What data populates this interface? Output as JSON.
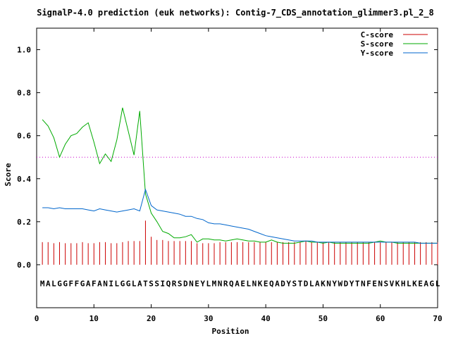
{
  "chart_data": {
    "type": "line",
    "title": "SignalP-4.0 prediction (euk networks): Contig-7_CDS_annotation_glimmer3.pl_2_8",
    "xlabel": "Position",
    "ylabel": "Score",
    "xlim": [
      0,
      70
    ],
    "ylim": [
      -0.2,
      1.1
    ],
    "xticks": [
      0,
      10,
      20,
      30,
      40,
      50,
      60,
      70
    ],
    "yticks": [
      0.0,
      0.2,
      0.4,
      0.6,
      0.8,
      1.0
    ],
    "ytick_labels": [
      "0.0",
      "0.2",
      "0.4",
      "0.6",
      "0.8",
      "1.0"
    ],
    "grid": false,
    "legend_position": "top-right",
    "threshold": {
      "value": 0.5,
      "style": "dotted",
      "color": "#cc00cc"
    },
    "sequence": "MALGGFFGAFANILGGLATSSIQRSDNEYLMNRQAELNKEQADYSTDLAKNYWDYTNFENSVKHLKEAGL",
    "series": [
      {
        "name": "C-score",
        "style": "impulse",
        "color": "#cc0000",
        "x": [
          1,
          2,
          3,
          4,
          5,
          6,
          7,
          8,
          9,
          10,
          11,
          12,
          13,
          14,
          15,
          16,
          17,
          18,
          19,
          20,
          21,
          22,
          23,
          24,
          25,
          26,
          27,
          28,
          29,
          30,
          31,
          32,
          33,
          34,
          35,
          36,
          37,
          38,
          39,
          40,
          41,
          42,
          43,
          44,
          45,
          46,
          47,
          48,
          49,
          50,
          51,
          52,
          53,
          54,
          55,
          56,
          57,
          58,
          59,
          60,
          61,
          62,
          63,
          64,
          65,
          66,
          67,
          68,
          69,
          70
        ],
        "values": [
          0.105,
          0.105,
          0.1,
          0.105,
          0.1,
          0.1,
          0.1,
          0.105,
          0.1,
          0.1,
          0.105,
          0.105,
          0.1,
          0.1,
          0.105,
          0.11,
          0.11,
          0.11,
          0.205,
          0.13,
          0.115,
          0.115,
          0.11,
          0.11,
          0.11,
          0.11,
          0.11,
          0.1,
          0.1,
          0.1,
          0.1,
          0.105,
          0.105,
          0.105,
          0.105,
          0.105,
          0.105,
          0.105,
          0.105,
          0.105,
          0.105,
          0.105,
          0.105,
          0.105,
          0.105,
          0.105,
          0.11,
          0.105,
          0.105,
          0.105,
          0.105,
          0.105,
          0.105,
          0.105,
          0.105,
          0.105,
          0.105,
          0.105,
          0.105,
          0.105,
          0.105,
          0.105,
          0.105,
          0.105,
          0.105,
          0.105,
          0.105,
          0.105,
          0.105,
          0.105
        ]
      },
      {
        "name": "S-score",
        "style": "line",
        "color": "#00aa00",
        "x": [
          1,
          2,
          3,
          4,
          5,
          6,
          7,
          8,
          9,
          10,
          11,
          12,
          13,
          14,
          15,
          16,
          17,
          18,
          19,
          20,
          21,
          22,
          23,
          24,
          25,
          26,
          27,
          28,
          29,
          30,
          31,
          32,
          33,
          34,
          35,
          36,
          37,
          38,
          39,
          40,
          41,
          42,
          43,
          44,
          45,
          46,
          47,
          48,
          49,
          50,
          51,
          52,
          53,
          54,
          55,
          56,
          57,
          58,
          59,
          60,
          61,
          62,
          63,
          64,
          65,
          66,
          67,
          68,
          69,
          70
        ],
        "values": [
          0.675,
          0.645,
          0.59,
          0.5,
          0.56,
          0.6,
          0.61,
          0.64,
          0.66,
          0.57,
          0.47,
          0.515,
          0.48,
          0.58,
          0.73,
          0.62,
          0.51,
          0.715,
          0.33,
          0.24,
          0.2,
          0.155,
          0.145,
          0.125,
          0.125,
          0.13,
          0.14,
          0.105,
          0.12,
          0.12,
          0.115,
          0.115,
          0.11,
          0.115,
          0.12,
          0.115,
          0.11,
          0.11,
          0.105,
          0.105,
          0.115,
          0.105,
          0.1,
          0.1,
          0.1,
          0.105,
          0.11,
          0.105,
          0.105,
          0.1,
          0.105,
          0.1,
          0.1,
          0.1,
          0.1,
          0.1,
          0.1,
          0.1,
          0.105,
          0.11,
          0.105,
          0.105,
          0.1,
          0.1,
          0.1,
          0.1,
          0.1,
          0.1,
          0.1,
          0.1
        ]
      },
      {
        "name": "Y-score",
        "style": "line",
        "color": "#0066cc",
        "x": [
          1,
          2,
          3,
          4,
          5,
          6,
          7,
          8,
          9,
          10,
          11,
          12,
          13,
          14,
          15,
          16,
          17,
          18,
          19,
          20,
          21,
          22,
          23,
          24,
          25,
          26,
          27,
          28,
          29,
          30,
          31,
          32,
          33,
          34,
          35,
          36,
          37,
          38,
          39,
          40,
          41,
          42,
          43,
          44,
          45,
          46,
          47,
          48,
          49,
          50,
          51,
          52,
          53,
          54,
          55,
          56,
          57,
          58,
          59,
          60,
          61,
          62,
          63,
          64,
          65,
          66,
          67,
          68,
          69,
          70
        ],
        "values": [
          0.265,
          0.265,
          0.26,
          0.265,
          0.26,
          0.26,
          0.26,
          0.26,
          0.255,
          0.25,
          0.26,
          0.255,
          0.25,
          0.245,
          0.25,
          0.255,
          0.26,
          0.25,
          0.35,
          0.275,
          0.255,
          0.25,
          0.245,
          0.24,
          0.235,
          0.225,
          0.225,
          0.215,
          0.21,
          0.195,
          0.19,
          0.19,
          0.185,
          0.18,
          0.175,
          0.17,
          0.165,
          0.155,
          0.145,
          0.135,
          0.13,
          0.125,
          0.12,
          0.115,
          0.11,
          0.11,
          0.11,
          0.11,
          0.105,
          0.105,
          0.105,
          0.105,
          0.105,
          0.105,
          0.105,
          0.105,
          0.105,
          0.105,
          0.105,
          0.105,
          0.105,
          0.105,
          0.105,
          0.105,
          0.105,
          0.105,
          0.1,
          0.1,
          0.1,
          0.1
        ]
      }
    ]
  }
}
